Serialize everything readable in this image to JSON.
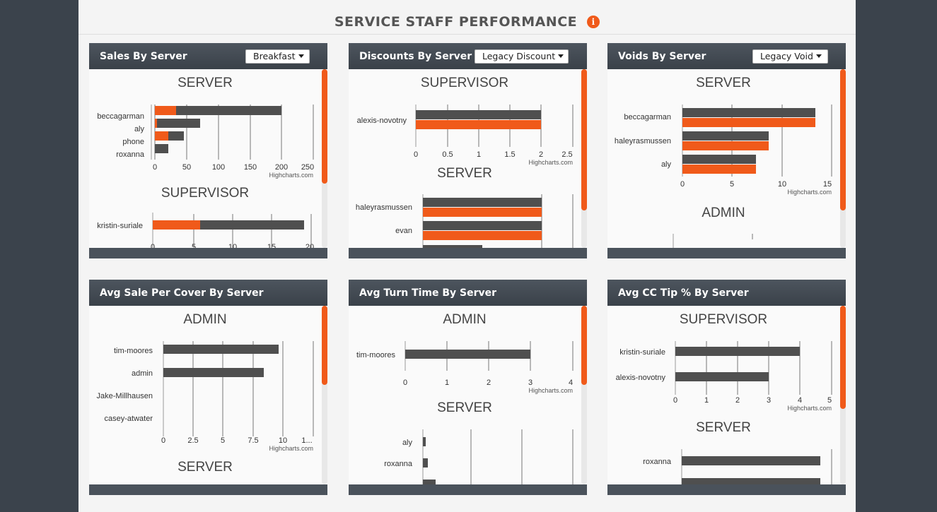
{
  "page": {
    "title": "SERVICE STAFF PERFORMANCE",
    "info_icon": "i"
  },
  "colors": {
    "accent": "#f05a1a",
    "dark_bar": "#4f4f4f",
    "header": "#424a53"
  },
  "panels": [
    {
      "title": "Sales By Server",
      "dropdown": "Breakfast",
      "credit": "Highcharts.com",
      "groups": [
        {
          "heading": "SERVER",
          "axis_ticks": [
            "0",
            "50",
            "100",
            "150",
            "200",
            "250"
          ],
          "max": 270,
          "rows": [
            {
              "label": "beccagarman",
              "dark": 200,
              "orange": 27
            },
            {
              "label": "aly",
              "dark": 70,
              "orange": 2
            },
            {
              "label": "phone",
              "dark": 45,
              "orange": 18
            },
            {
              "label": "roxanna",
              "dark": 22,
              "orange": 0
            }
          ]
        },
        {
          "heading": "SUPERVISOR",
          "axis_ticks": [
            "0",
            "5",
            "10",
            "15",
            "20"
          ],
          "max": 21,
          "rows": [
            {
              "label": "kristin-suriale",
              "dark": 19,
              "orange": 6
            }
          ]
        }
      ]
    },
    {
      "title": "Discounts By Server",
      "dropdown": "Legacy Discount",
      "credit": "Highcharts.com",
      "groups": [
        {
          "heading": "SUPERVISOR",
          "axis_ticks": [
            "0",
            "0.5",
            "1",
            "1.5",
            "2",
            "2.5"
          ],
          "max": 2.5,
          "rows": [
            {
              "label": "alexis-novotny",
              "dark": 2,
              "orange": 2
            }
          ]
        },
        {
          "heading": "SERVER",
          "axis_ticks": [],
          "max": 2.5,
          "rows": [
            {
              "label": "haleyrasmussen",
              "dark": 2,
              "orange": 2
            },
            {
              "label": "evan",
              "dark": 2,
              "orange": 2
            }
          ]
        }
      ]
    },
    {
      "title": "Voids By Server",
      "dropdown": "Legacy Void",
      "credit": "Highcharts.com",
      "groups": [
        {
          "heading": "SERVER",
          "axis_ticks": [
            "0",
            "5",
            "10",
            "15"
          ],
          "max": 15,
          "rows": [
            {
              "label": "beccagarman",
              "dark": 13.5,
              "orange": 13.5
            },
            {
              "label": "haleyrasmussen",
              "dark": 8.7,
              "orange": 8.7
            },
            {
              "label": "aly",
              "dark": 7.5,
              "orange": 7.5
            }
          ]
        },
        {
          "heading": "ADMIN",
          "axis_ticks": [],
          "max": 15,
          "rows": []
        }
      ]
    },
    {
      "title": "Avg Sale Per Cover By Server",
      "dropdown": "",
      "credit": "Highcharts.com",
      "groups": [
        {
          "heading": "ADMIN",
          "axis_ticks": [
            "0",
            "2.5",
            "5",
            "7.5",
            "10",
            "1..."
          ],
          "max": 12.5,
          "rows": [
            {
              "label": "tim-moores",
              "dark": 9.7,
              "orange": 0
            },
            {
              "label": "admin",
              "dark": 8.4,
              "orange": 0
            },
            {
              "label": "Jake-Millhausen",
              "dark": 0,
              "orange": 0
            },
            {
              "label": "casey-atwater",
              "dark": 0,
              "orange": 0
            }
          ]
        },
        {
          "heading": "SERVER",
          "axis_ticks": [],
          "max": 12.5,
          "rows": []
        }
      ]
    },
    {
      "title": "Avg Turn Time By Server",
      "dropdown": "",
      "credit": "Highcharts.com",
      "groups": [
        {
          "heading": "ADMIN",
          "axis_ticks": [
            "0",
            "1",
            "2",
            "3",
            "4"
          ],
          "max": 4,
          "rows": [
            {
              "label": "tim-moores",
              "dark": 3,
              "orange": 0
            }
          ]
        },
        {
          "heading": "SERVER",
          "axis_ticks": [],
          "max": 50,
          "rows": [
            {
              "label": "aly",
              "dark": 0.8,
              "orange": 0
            },
            {
              "label": "roxanna",
              "dark": 1.3,
              "orange": 0
            }
          ]
        }
      ]
    },
    {
      "title": "Avg CC Tip % By Server",
      "dropdown": "",
      "credit": "Highcharts.com",
      "groups": [
        {
          "heading": "SUPERVISOR",
          "axis_ticks": [
            "0",
            "1",
            "2",
            "3",
            "4",
            "5"
          ],
          "max": 5,
          "rows": [
            {
              "label": "kristin-suriale",
              "dark": 4,
              "orange": 0
            },
            {
              "label": "alexis-novotny",
              "dark": 3,
              "orange": 0
            }
          ]
        },
        {
          "heading": "SERVER",
          "axis_ticks": [],
          "max": 5,
          "rows": [
            {
              "label": "roxanna",
              "dark": 4.5,
              "orange": 0
            }
          ]
        }
      ]
    }
  ]
}
